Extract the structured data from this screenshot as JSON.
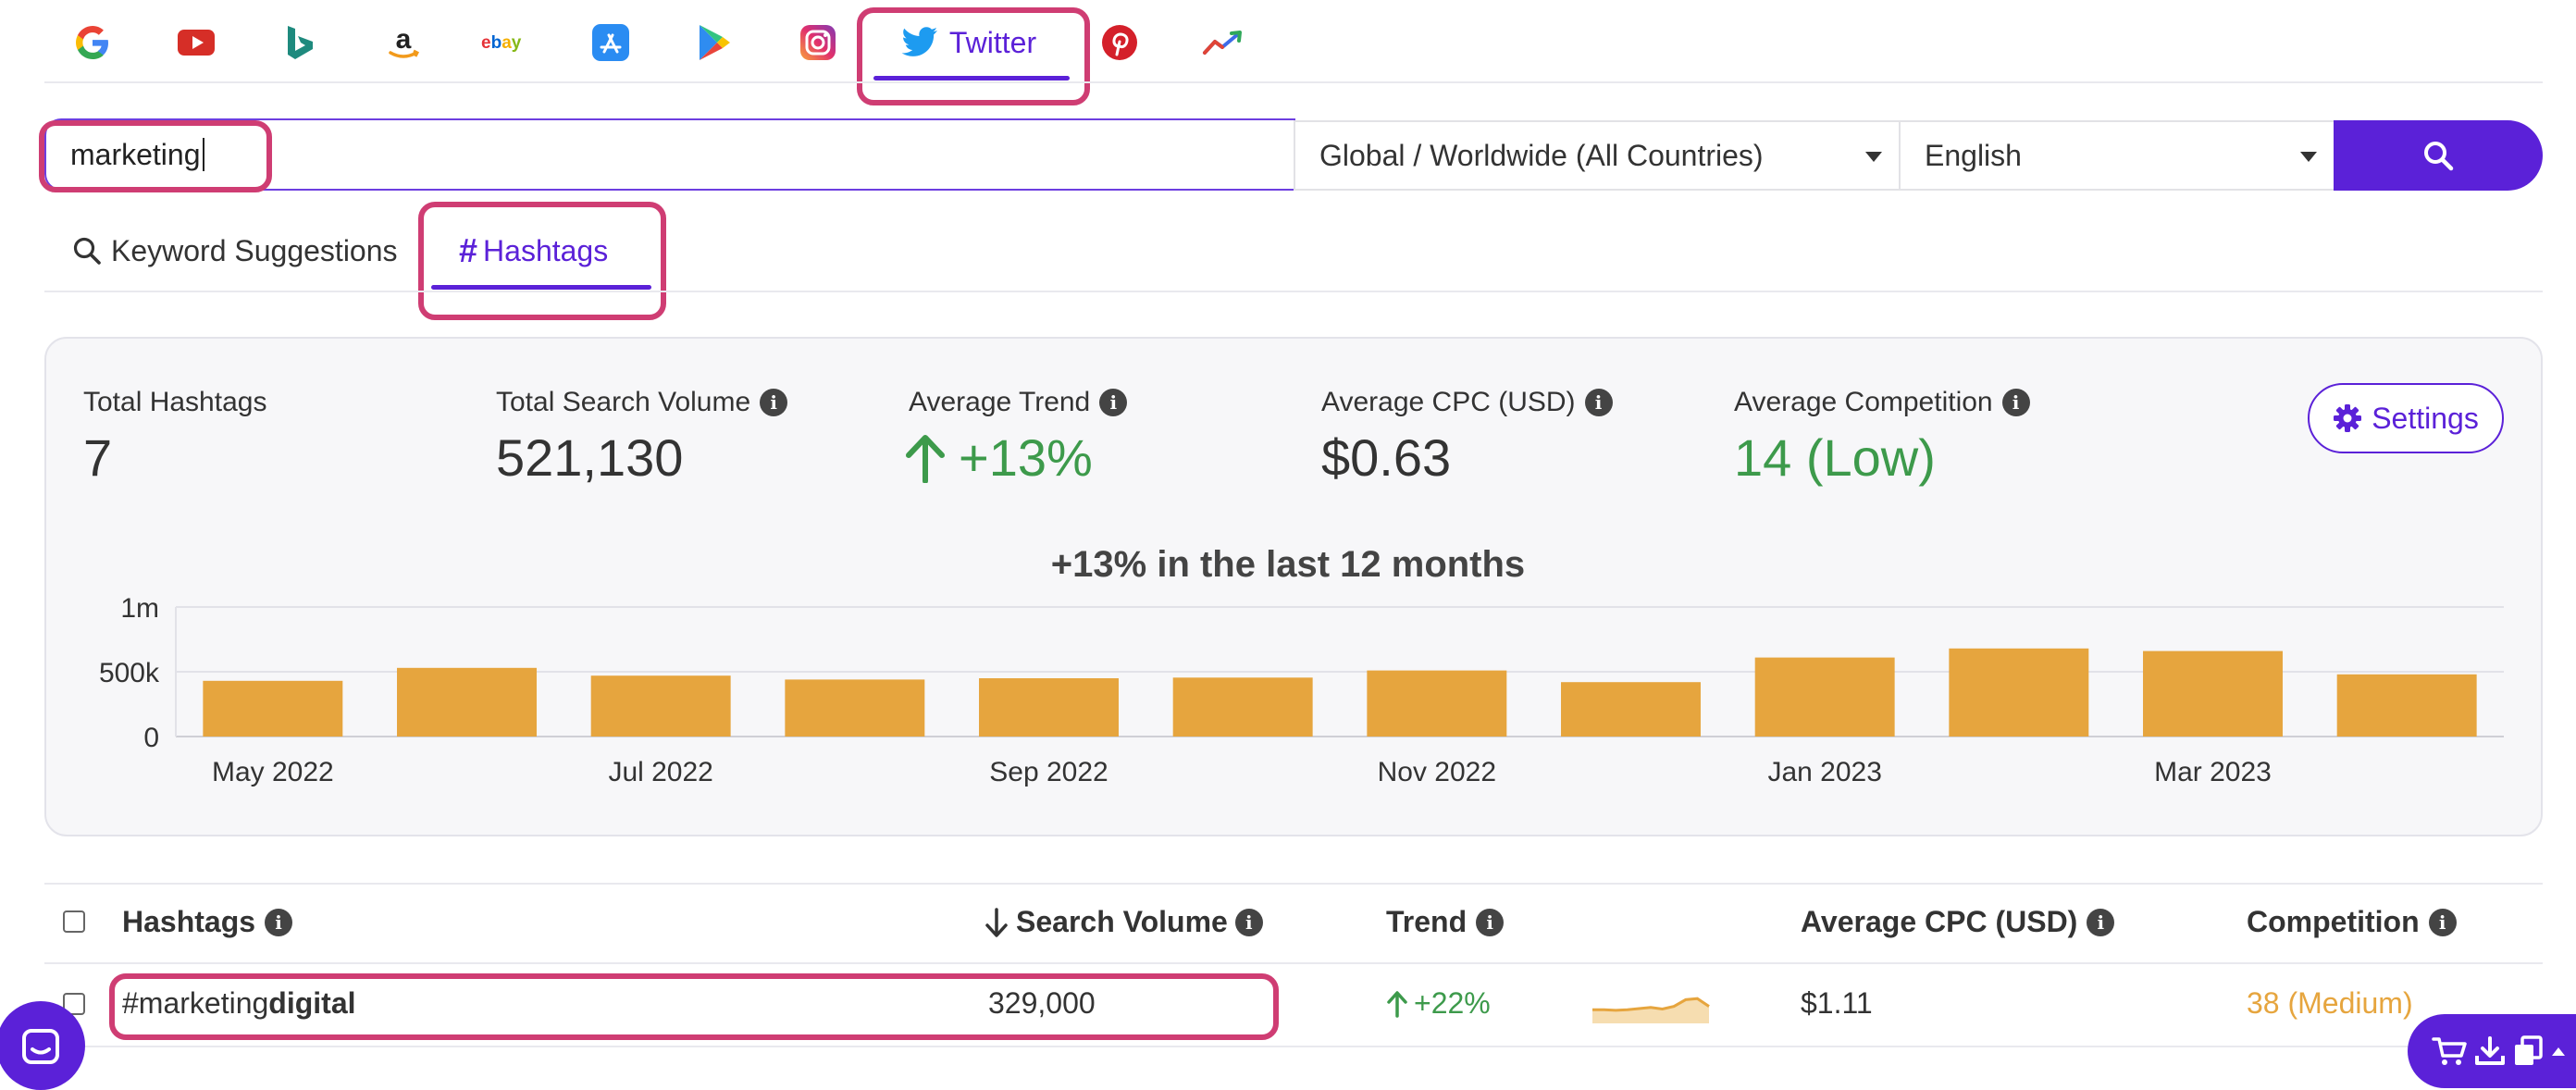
{
  "platforms": {
    "active_label": "Twitter",
    "items": [
      "google-icon",
      "youtube-icon",
      "bing-icon",
      "amazon-icon",
      "ebay-icon",
      "app-store-icon",
      "google-play-icon",
      "instagram-icon",
      "twitter-icon",
      "pinterest-icon",
      "trends-icon"
    ]
  },
  "search": {
    "query": "marketing",
    "location": "Global / Worldwide (All Countries)",
    "language": "English"
  },
  "subtabs": {
    "suggestions": "Keyword Suggestions",
    "hashtags": "Hashtags",
    "hashtags_symbol": "#"
  },
  "stats": {
    "total_hashtags_label": "Total Hashtags",
    "total_hashtags": "7",
    "total_volume_label": "Total Search Volume",
    "total_volume": "521,130",
    "avg_trend_label": "Average Trend",
    "avg_trend": "+13%",
    "avg_cpc_label": "Average CPC (USD)",
    "avg_cpc": "$0.63",
    "avg_comp_label": "Average Competition",
    "avg_comp": "14 (Low)",
    "settings_label": "Settings"
  },
  "colors": {
    "accent": "#5b21d8",
    "highlight": "#cf3d73",
    "bar": "#e6a53e",
    "positive": "#3d9a4b",
    "medium": "#e6a53e"
  },
  "chart_data": {
    "type": "bar",
    "title": "+13% in the last 12 months",
    "categories": [
      "May 2022",
      "Jun 2022",
      "Jul 2022",
      "Aug 2022",
      "Sep 2022",
      "Oct 2022",
      "Nov 2022",
      "Dec 2022",
      "Jan 2023",
      "Feb 2023",
      "Mar 2023",
      "Apr 2023"
    ],
    "values": [
      430000,
      530000,
      470000,
      440000,
      450000,
      455000,
      510000,
      420000,
      610000,
      680000,
      660000,
      480000
    ],
    "ylim": [
      0,
      1000000
    ],
    "yticks": [
      "0",
      "500k",
      "1m"
    ],
    "xtick_labels": [
      "May 2022",
      "Jul 2022",
      "Sep 2022",
      "Nov 2022",
      "Jan 2023",
      "Mar 2023"
    ],
    "grid": true
  },
  "table": {
    "headers": {
      "hashtags": "Hashtags",
      "volume": "Search Volume",
      "trend": "Trend",
      "cpc": "Average CPC (USD)",
      "competition": "Competition"
    },
    "rows": [
      {
        "hashtag_prefix": "#marketing",
        "hashtag_bold": "digital",
        "volume": "329,000",
        "trend": "+22%",
        "sparkline": [
          0.45,
          0.45,
          0.42,
          0.45,
          0.5,
          0.55,
          0.48,
          0.6,
          0.9,
          0.95,
          0.6
        ],
        "cpc": "$1.11",
        "competition": "38 (Medium)"
      }
    ]
  }
}
